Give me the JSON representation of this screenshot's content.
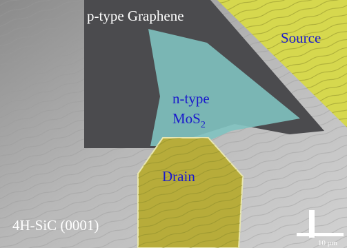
{
  "labels": {
    "graphene": "p-type Graphene",
    "source": "Source",
    "ntype": "n-type",
    "mos2": {
      "base": "MoS",
      "subscript": "2"
    },
    "drain": "Drain",
    "substrate": "4H-SiC (0001)",
    "scale": "10 μm"
  }
}
